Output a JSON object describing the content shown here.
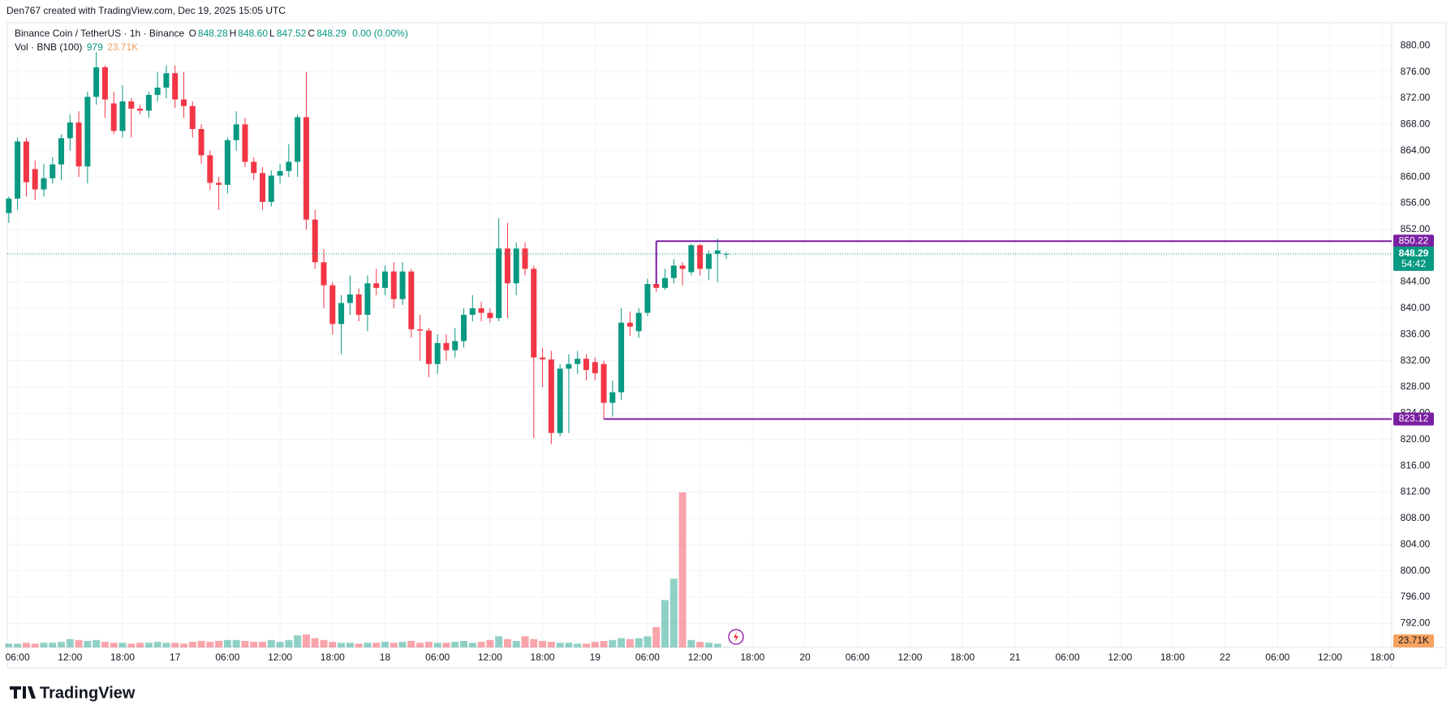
{
  "attribution": "Den767 created with TradingView.com, Dec 19, 2025 15:05 UTC",
  "brand": "TradingView",
  "chart_data": {
    "type": "candlestick",
    "legend": {
      "symbol": "Binance Coin / TetherUS · 1h · Binance",
      "fields": [
        {
          "key": "O",
          "text": "848.28"
        },
        {
          "key": "H",
          "text": "848.60"
        },
        {
          "key": "L",
          "text": "847.52"
        },
        {
          "key": "C",
          "text": "848.29"
        }
      ],
      "change": "0.00 (0.00%)"
    },
    "volume_title": "Vol · BNB (100)",
    "up_color": "#089981",
    "down_color": "#f23645",
    "x": [
      5,
      6,
      7,
      8,
      9,
      10,
      11,
      12,
      13,
      14,
      15,
      16,
      17,
      18,
      19,
      20,
      21,
      22,
      23,
      24,
      25,
      26,
      27,
      28,
      29,
      30,
      31,
      32,
      33,
      34,
      35,
      36,
      37,
      38,
      39,
      40,
      41,
      42,
      43,
      44,
      45,
      46,
      47,
      48,
      49,
      50,
      51,
      52,
      53,
      54,
      55,
      56,
      57,
      58,
      59,
      60,
      61,
      62,
      63,
      64,
      65,
      66,
      67,
      68,
      69,
      70,
      71,
      72,
      73,
      74,
      75,
      76,
      77,
      78,
      79,
      80,
      81,
      82,
      83,
      84,
      85,
      86,
      87
    ],
    "open": [
      854.5,
      856.7,
      865.4,
      861.2,
      858.1,
      859.8,
      861.9,
      865.9,
      868.3,
      861.6,
      872.2,
      876.7,
      871.2,
      867,
      871.5,
      870.4,
      870.1,
      872.5,
      873.6,
      875.8,
      871.8,
      870.8,
      867.3,
      863.3,
      859.1,
      858.8,
      865.6,
      868,
      862.3,
      860.6,
      856.2,
      860.2,
      860.9,
      862.3,
      869.1,
      853.5,
      847,
      843.5,
      837.6,
      840.8,
      842.1,
      839,
      843.8,
      843.1,
      845.6,
      841.4,
      845.6,
      836.8,
      836.6,
      831.5,
      834.7,
      833.6,
      835,
      839,
      840,
      839.3,
      838.5,
      849.1,
      843.8,
      849.1,
      846,
      832.5,
      832.2,
      821,
      830.8,
      831.5,
      832.3,
      831.8,
      831.5,
      825.6,
      827.2,
      837.8,
      836.5,
      839.3,
      843.7,
      843.1,
      844.6,
      846.5,
      845.5,
      849.6,
      846,
      848.3,
      848.28
    ],
    "high": [
      857,
      866,
      866,
      862.5,
      862,
      863,
      866.5,
      869.5,
      870,
      873,
      879,
      877,
      873,
      874,
      872,
      871,
      873,
      876,
      877,
      877,
      876,
      871.5,
      868,
      864,
      860,
      866,
      870,
      869,
      863,
      861.5,
      861,
      862,
      865,
      869.5,
      876,
      855,
      849,
      844,
      842,
      845,
      843,
      845,
      846,
      846.5,
      847,
      847,
      846,
      839,
      837,
      836,
      836,
      837,
      840,
      842,
      841,
      840,
      853.7,
      853,
      850,
      850,
      846.5,
      834,
      833.5,
      831.5,
      833,
      833.5,
      833,
      832.5,
      832,
      829,
      840,
      839.5,
      840,
      844.5,
      850.2,
      846,
      847.5,
      847,
      849.8,
      849.8,
      848.8,
      850.6,
      848.6
    ],
    "low": [
      853,
      855,
      857,
      856.5,
      857,
      859,
      859.5,
      864,
      860,
      859,
      871,
      869,
      866.5,
      866,
      866,
      869.5,
      869,
      871.5,
      872,
      870.5,
      869,
      866,
      862,
      858,
      855,
      857.5,
      864,
      861.5,
      859.5,
      855,
      855.5,
      859,
      860,
      860,
      852,
      846,
      840,
      836,
      833,
      839,
      838,
      836.5,
      842,
      842,
      840,
      840.5,
      835.5,
      832,
      829.5,
      830,
      832,
      832.5,
      834,
      838,
      838,
      837.8,
      838,
      838.5,
      842,
      845,
      820.2,
      828,
      819.3,
      820.5,
      821,
      830,
      829,
      829,
      823.1,
      823.5,
      826,
      835.8,
      835.5,
      838.8,
      842.5,
      842.8,
      843.8,
      843.5,
      845,
      845,
      844.3,
      844,
      847.52
    ],
    "close": [
      856.7,
      865.4,
      859.2,
      858.1,
      859.8,
      861.9,
      865.9,
      868.3,
      861.6,
      872.2,
      876.7,
      871.8,
      867,
      871.5,
      870.4,
      870.1,
      872.5,
      873.6,
      875.8,
      871.8,
      870.8,
      867.3,
      863.3,
      859.1,
      858.8,
      865.6,
      868,
      862.3,
      860.6,
      856.2,
      860.2,
      860.9,
      862.3,
      869.1,
      853.5,
      847,
      843.5,
      837.6,
      840.8,
      842.1,
      839,
      843.8,
      843.1,
      845.6,
      841.4,
      845.6,
      836.8,
      836.6,
      831.5,
      834.7,
      833.6,
      835,
      839,
      840,
      839.3,
      838.5,
      849.1,
      843.8,
      849.1,
      846,
      832.5,
      832.2,
      821,
      830.8,
      831.5,
      832.3,
      830.6,
      830.1,
      825.6,
      827.2,
      837.8,
      837.2,
      839.3,
      843.7,
      843.1,
      844.6,
      846.5,
      846,
      849.6,
      846,
      848.3,
      848.8,
      848.29
    ],
    "volume": [
      13600,
      13600,
      17000,
      13600,
      17000,
      17000,
      20400,
      30600,
      27200,
      23800,
      27200,
      20400,
      17000,
      17000,
      13600,
      17000,
      17000,
      20400,
      17000,
      17000,
      13600,
      20400,
      23800,
      20400,
      23800,
      27200,
      27200,
      23800,
      20400,
      20400,
      27200,
      20400,
      27200,
      44200,
      47600,
      34000,
      27200,
      20400,
      17000,
      17000,
      13600,
      17000,
      17000,
      20400,
      17000,
      20400,
      23800,
      17000,
      20400,
      17000,
      17000,
      20400,
      23800,
      17000,
      20400,
      27200,
      40800,
      30600,
      23800,
      40800,
      30600,
      23800,
      20400,
      17000,
      17000,
      13600,
      13600,
      20400,
      23800,
      27200,
      34000,
      30600,
      34000,
      40800,
      74800,
      173400,
      251600,
      567800,
      27200,
      20400,
      17000,
      13600,
      979
    ],
    "volume_ma": {
      "value": 23710,
      "label": "23.71K"
    },
    "volume_ylim": [
      0,
      2288000
    ],
    "countdown": "54:42",
    "levels": [
      {
        "value": 850.22,
        "start": 79,
        "color": "#7b1fa2"
      },
      {
        "value": 823.12,
        "start": 73,
        "color": "#7b1fa2"
      }
    ],
    "xlim": [
      4.83,
      163.05
    ],
    "xticks": [
      {
        "value": 6,
        "label": "06:00"
      },
      {
        "value": 12,
        "label": "12:00"
      },
      {
        "value": 18,
        "label": "18:00"
      },
      {
        "value": 24,
        "label": "17"
      },
      {
        "value": 30,
        "label": "06:00"
      },
      {
        "value": 36,
        "label": "12:00"
      },
      {
        "value": 42,
        "label": "18:00"
      },
      {
        "value": 48,
        "label": "18"
      },
      {
        "value": 54,
        "label": "06:00"
      },
      {
        "value": 60,
        "label": "12:00"
      },
      {
        "value": 66,
        "label": "18:00"
      },
      {
        "value": 72,
        "label": "19"
      },
      {
        "value": 78,
        "label": "06:00"
      },
      {
        "value": 84,
        "label": "12:00"
      },
      {
        "value": 90,
        "label": "18:00"
      },
      {
        "value": 96,
        "label": "20"
      },
      {
        "value": 102,
        "label": "06:00"
      },
      {
        "value": 108,
        "label": "12:00"
      },
      {
        "value": 114,
        "label": "18:00"
      },
      {
        "value": 120,
        "label": "21"
      },
      {
        "value": 126,
        "label": "06:00"
      },
      {
        "value": 132,
        "label": "12:00"
      },
      {
        "value": 138,
        "label": "18:00"
      },
      {
        "value": 144,
        "label": "22"
      },
      {
        "value": 150,
        "label": "06:00"
      },
      {
        "value": 156,
        "label": "12:00"
      },
      {
        "value": 162,
        "label": "18:00"
      }
    ],
    "ylim": [
      788.34,
      883.49
    ],
    "yticks": [
      {
        "value": 792,
        "label": "792.00"
      },
      {
        "value": 796,
        "label": "796.00"
      },
      {
        "value": 800,
        "label": "800.00"
      },
      {
        "value": 804,
        "label": "804.00"
      },
      {
        "value": 808,
        "label": "808.00"
      },
      {
        "value": 812,
        "label": "812.00"
      },
      {
        "value": 816,
        "label": "816.00"
      },
      {
        "value": 820,
        "label": "820.00"
      },
      {
        "value": 824,
        "label": "824.00"
      },
      {
        "value": 828,
        "label": "828.00"
      },
      {
        "value": 832,
        "label": "832.00"
      },
      {
        "value": 836,
        "label": "836.00"
      },
      {
        "value": 840,
        "label": "840.00"
      },
      {
        "value": 844,
        "label": "844.00"
      },
      {
        "value": 848,
        "label": "848.00"
      },
      {
        "value": 852,
        "label": "852.00"
      },
      {
        "value": 856,
        "label": "856.00"
      },
      {
        "value": 860,
        "label": "860.00"
      },
      {
        "value": 864,
        "label": "864.00"
      },
      {
        "value": 868,
        "label": "868.00"
      },
      {
        "value": 872,
        "label": "872.00"
      },
      {
        "value": 876,
        "label": "876.00"
      },
      {
        "value": 880,
        "label": "880.00"
      }
    ],
    "grid": true
  }
}
